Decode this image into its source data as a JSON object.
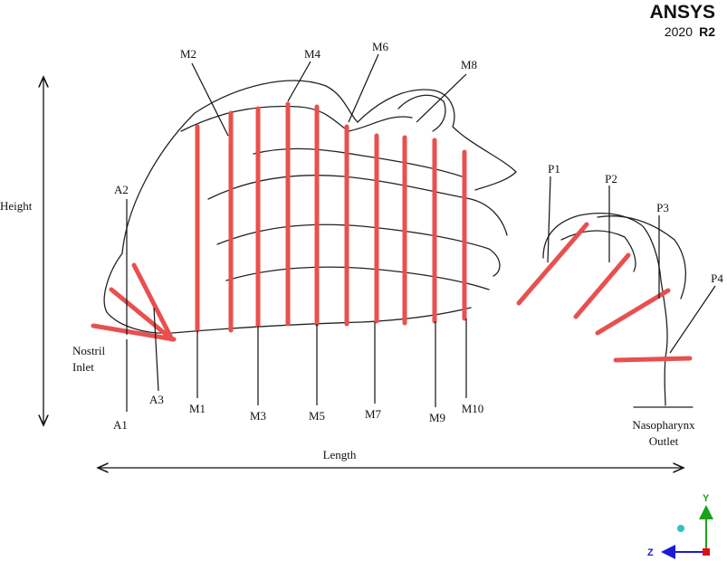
{
  "logo": {
    "brand": "ANSYS",
    "version": "2020",
    "release": "R2"
  },
  "dimensions": {
    "height": "Height",
    "length": "Length"
  },
  "labels": {
    "M1": "M1",
    "M2": "M2",
    "M3": "M3",
    "M4": "M4",
    "M5": "M5",
    "M6": "M6",
    "M7": "M7",
    "M8": "M8",
    "M9": "M9",
    "M10": "M10",
    "A1": "A1",
    "A2": "A2",
    "A3": "A3",
    "P1": "P1",
    "P2": "P2",
    "P3": "P3",
    "P4": "P4"
  },
  "regions": {
    "inlet": [
      "Nostril",
      "Inlet"
    ],
    "outlet": [
      "Nasopharynx",
      "Outlet"
    ]
  },
  "axes": {
    "y": "Y",
    "z": "Z"
  }
}
